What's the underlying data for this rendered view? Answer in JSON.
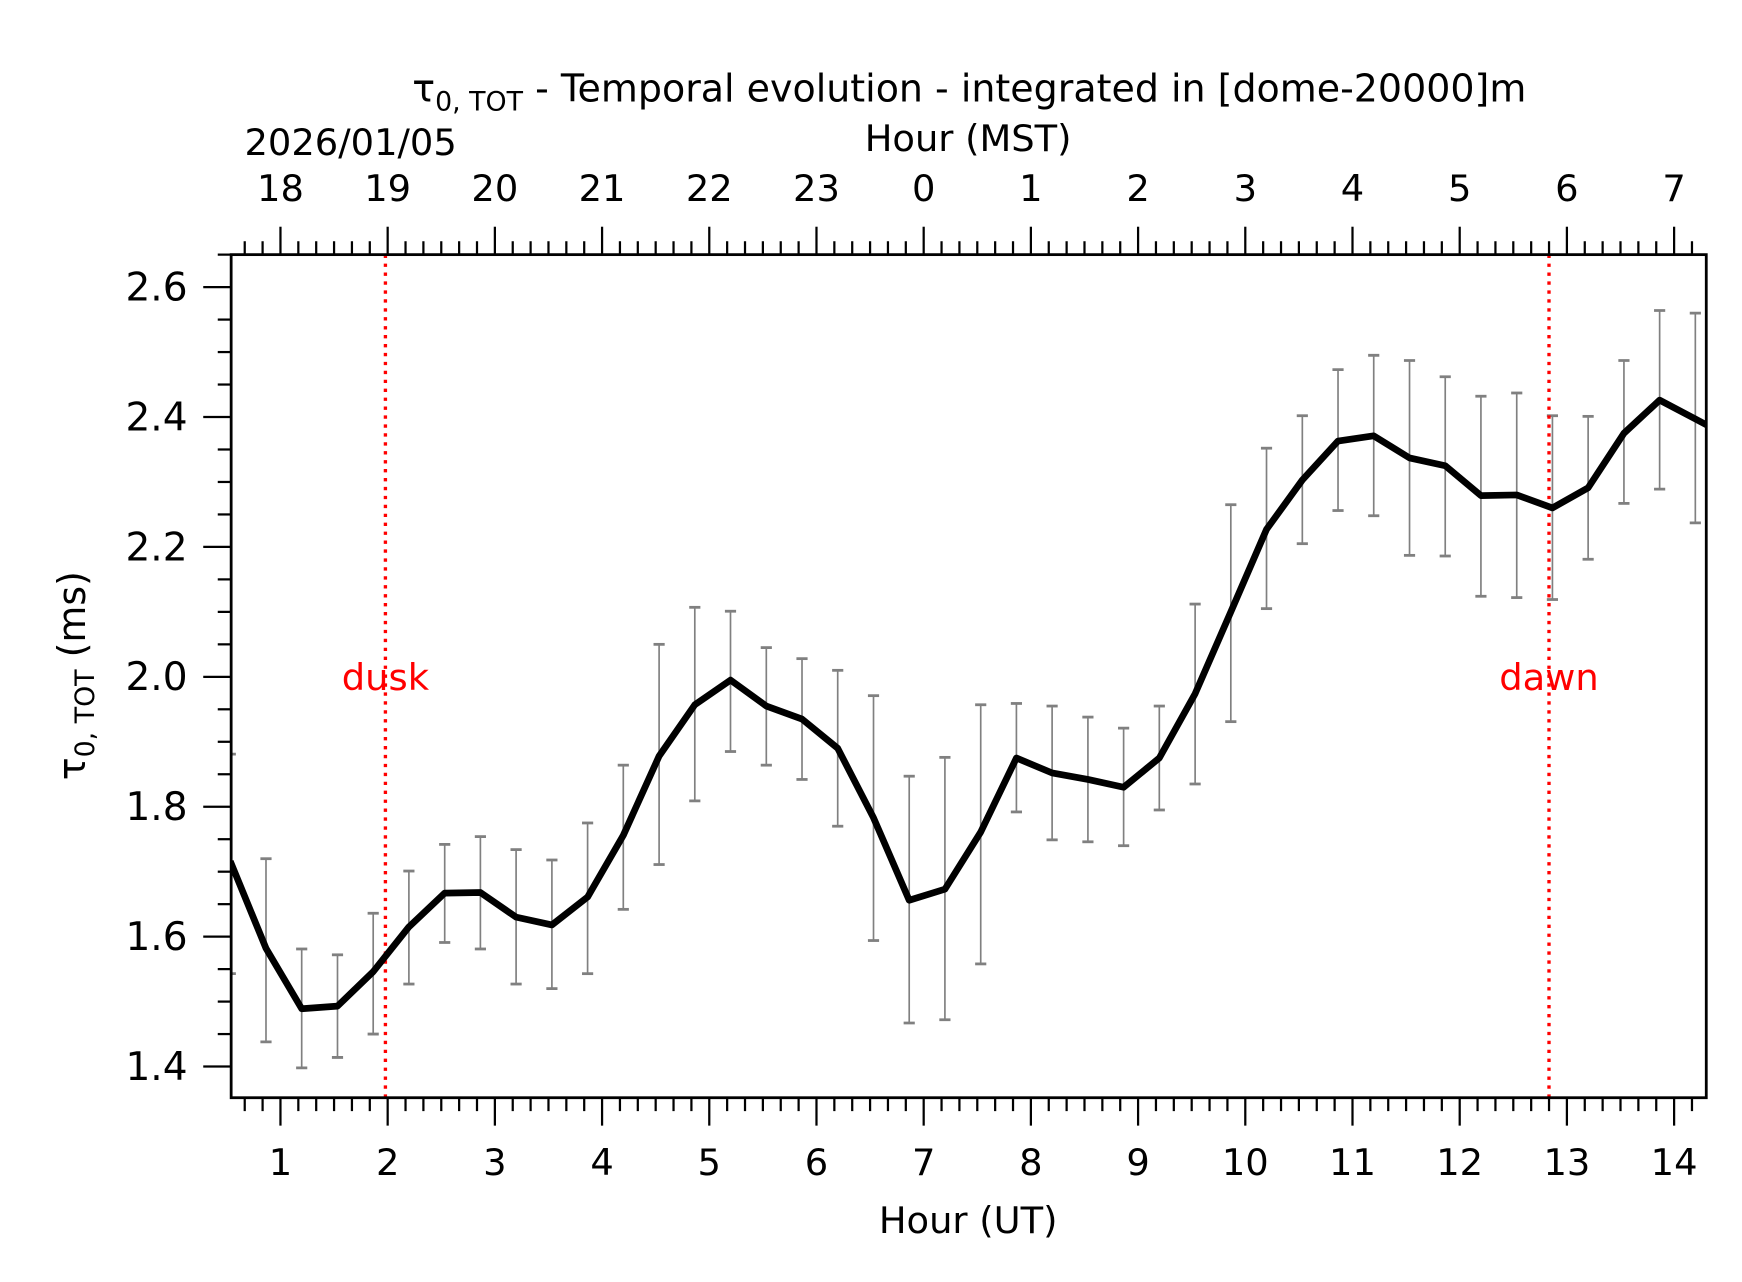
{
  "chart_data": {
    "type": "line",
    "title": {
      "symbol": "τ",
      "subscript": "0, TOT",
      "text": " - Temporal evolution - integrated in [dome-20000]m"
    },
    "date_label": "2026/01/05",
    "xlabel": "Hour (UT)",
    "x2label": "Hour (MST)",
    "ylabel": {
      "symbol": "τ",
      "subscript": "0, TOT",
      "text": " (ms)"
    },
    "xlim": [
      0.54,
      14.3
    ],
    "ylim": [
      1.352,
      2.65
    ],
    "x_ticks": [
      1,
      2,
      3,
      4,
      5,
      6,
      7,
      8,
      9,
      10,
      11,
      12,
      13,
      14
    ],
    "x_tick_labels": [
      "1",
      "2",
      "3",
      "4",
      "5",
      "6",
      "7",
      "8",
      "9",
      "10",
      "11",
      "12",
      "13",
      "14"
    ],
    "x2_tick_labels": [
      "18",
      "19",
      "20",
      "21",
      "22",
      "23",
      "0",
      "1",
      "2",
      "3",
      "4",
      "5",
      "6",
      "7"
    ],
    "y_ticks": [
      1.4,
      1.6,
      1.8,
      2.0,
      2.2,
      2.4,
      2.6
    ],
    "y_tick_labels": [
      "1.4",
      "1.6",
      "1.8",
      "2.0",
      "2.2",
      "2.4",
      "2.6"
    ],
    "grid": false,
    "line_color": "#000000",
    "errorbar_color": "#808080",
    "marker_color": "#ff0000",
    "series": [
      {
        "x": [
          0.532,
          0.865,
          1.198,
          1.532,
          1.865,
          2.198,
          2.532,
          2.865,
          3.198,
          3.532,
          3.865,
          4.198,
          4.532,
          4.865,
          5.198,
          5.532,
          5.865,
          6.198,
          6.532,
          6.865,
          7.198,
          7.532,
          7.865,
          8.198,
          8.532,
          8.865,
          9.198,
          9.532,
          9.865,
          10.198,
          10.532,
          10.865,
          11.198,
          11.532,
          11.865,
          12.198,
          12.532,
          12.865,
          13.198,
          13.532,
          13.865,
          14.198
        ],
        "y": [
          1.716,
          1.582,
          1.489,
          1.493,
          1.546,
          1.615,
          1.667,
          1.668,
          1.63,
          1.618,
          1.661,
          1.756,
          1.878,
          1.957,
          1.995,
          1.955,
          1.935,
          1.89,
          1.783,
          1.656,
          1.673,
          1.761,
          1.875,
          1.852,
          1.842,
          1.83,
          1.875,
          1.974,
          2.1,
          2.227,
          2.303,
          2.363,
          2.371,
          2.337,
          2.325,
          2.279,
          2.28,
          2.26,
          2.291,
          2.375,
          2.426,
          2.397
        ],
        "y_upper": [
          1.881,
          1.72,
          1.581,
          1.572,
          1.636,
          1.701,
          1.742,
          1.754,
          1.734,
          1.718,
          1.775,
          1.864,
          2.05,
          2.107,
          2.101,
          2.045,
          2.028,
          2.01,
          1.971,
          1.847,
          1.876,
          1.957,
          1.959,
          1.955,
          1.938,
          1.921,
          1.955,
          2.112,
          2.265,
          2.352,
          2.402,
          2.473,
          2.495,
          2.487,
          2.462,
          2.432,
          2.437,
          2.402,
          2.401,
          2.487,
          2.564,
          2.56
        ],
        "y_lower": [
          1.543,
          1.438,
          1.398,
          1.414,
          1.45,
          1.527,
          1.591,
          1.581,
          1.527,
          1.52,
          1.543,
          1.642,
          1.711,
          1.809,
          1.885,
          1.864,
          1.842,
          1.77,
          1.594,
          1.467,
          1.472,
          1.558,
          1.792,
          1.749,
          1.746,
          1.74,
          1.795,
          1.835,
          1.931,
          2.105,
          2.205,
          2.256,
          2.248,
          2.187,
          2.186,
          2.124,
          2.122,
          2.119,
          2.181,
          2.267,
          2.289,
          2.237
        ]
      }
    ],
    "vlines": [
      {
        "x": 1.979,
        "label": "dusk",
        "label_y": 2.0
      },
      {
        "x": 12.833,
        "label": "dawn",
        "label_y": 2.0
      }
    ]
  }
}
